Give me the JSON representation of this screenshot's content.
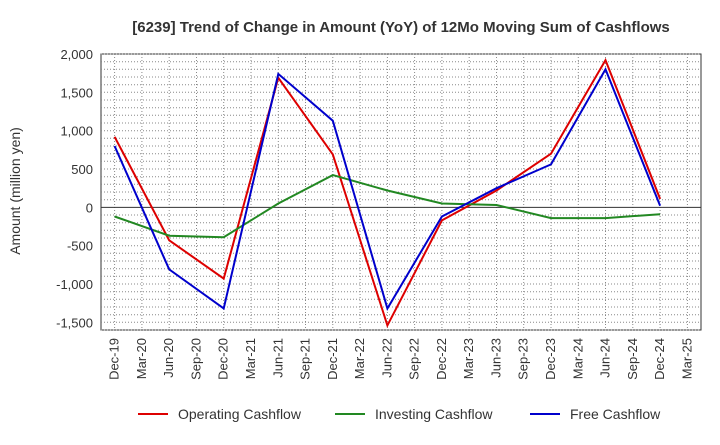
{
  "chart_data": {
    "type": "line",
    "title": "[6239]  Trend of Change in Amount (YoY) of 12Mo Moving Sum of Cashflows",
    "xlabel": "",
    "ylabel": "Amount (million yen)",
    "ylim": [
      -1600,
      2000
    ],
    "yticks": [
      -1500,
      -1000,
      -500,
      0,
      500,
      1000,
      1500,
      2000
    ],
    "ytick_labels": [
      "-1,500",
      "-1,000",
      "-500",
      "0",
      "500",
      "1,000",
      "1,500",
      "2,000"
    ],
    "categories": [
      "Dec-19",
      "Mar-20",
      "Jun-20",
      "Sep-20",
      "Dec-20",
      "Mar-21",
      "Jun-21",
      "Sep-21",
      "Dec-21",
      "Mar-22",
      "Jun-22",
      "Sep-22",
      "Dec-22",
      "Mar-23",
      "Jun-23",
      "Sep-23",
      "Dec-23",
      "Mar-24",
      "Jun-24",
      "Sep-24",
      "Dec-24",
      "Mar-25"
    ],
    "series": [
      {
        "name": "Operating Cashflow",
        "color": "#dd0000",
        "values": [
          920,
          null,
          -430,
          null,
          -930,
          null,
          1690,
          null,
          690,
          null,
          -1540,
          null,
          -170,
          null,
          220,
          null,
          700,
          null,
          1920,
          null,
          110,
          null
        ]
      },
      {
        "name": "Investing Cashflow",
        "color": "#228822",
        "values": [
          -120,
          null,
          -370,
          null,
          -390,
          null,
          50,
          null,
          420,
          null,
          220,
          null,
          50,
          null,
          30,
          null,
          -140,
          null,
          -140,
          null,
          -90,
          null
        ]
      },
      {
        "name": "Free Cashflow",
        "color": "#0000cc",
        "values": [
          800,
          null,
          -810,
          null,
          -1320,
          null,
          1740,
          null,
          1130,
          null,
          -1320,
          null,
          -120,
          null,
          250,
          null,
          560,
          null,
          1800,
          null,
          20,
          null
        ]
      }
    ],
    "legend_position": "bottom",
    "grid": true
  }
}
